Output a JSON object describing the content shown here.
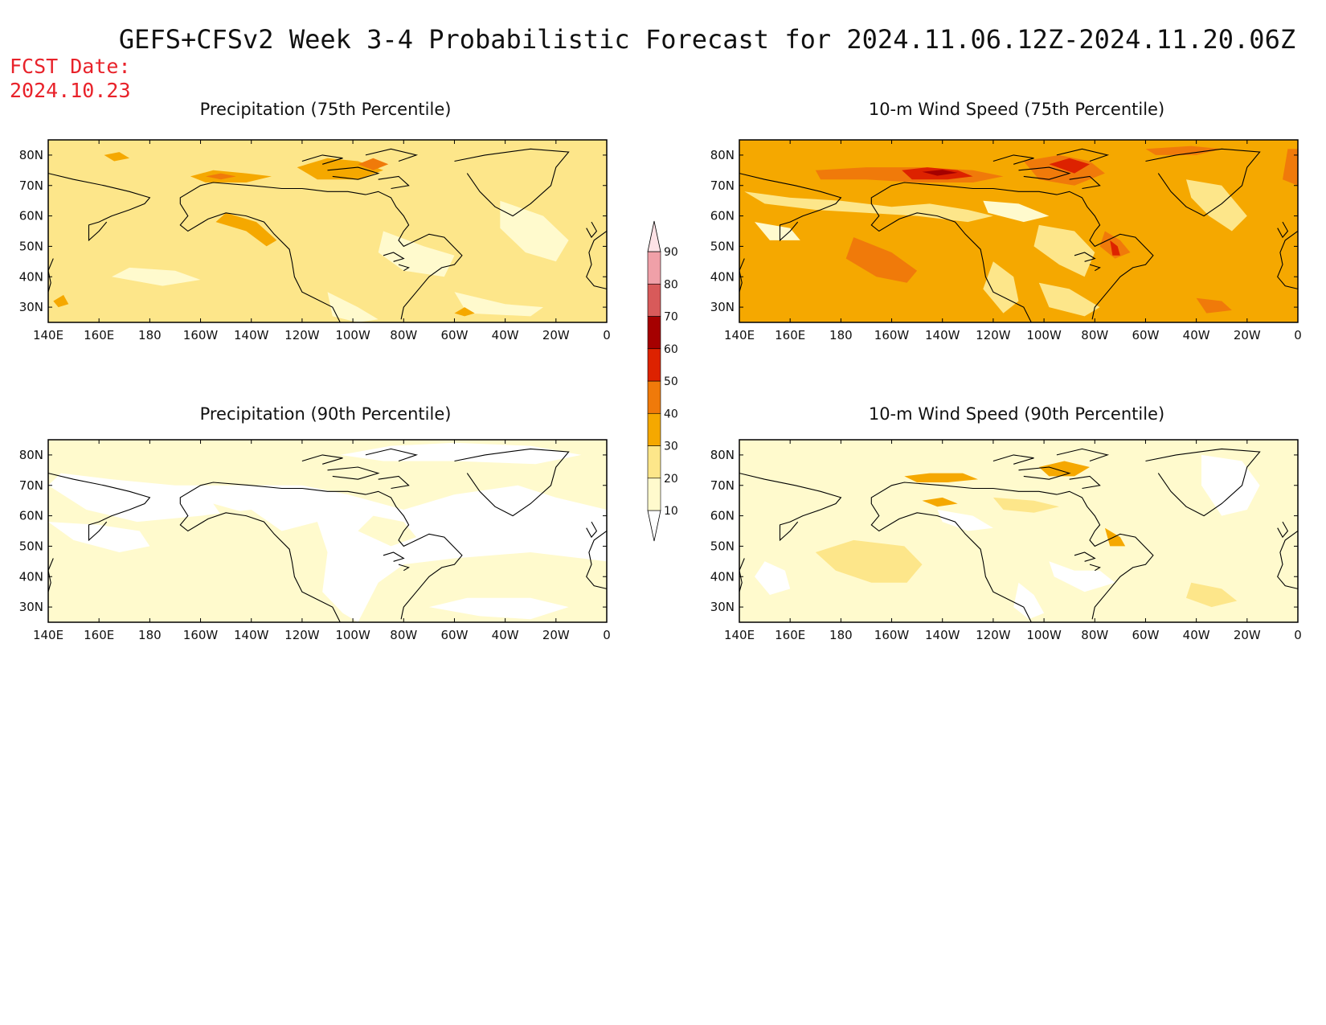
{
  "figure": {
    "title": "GEFS+CFSv2 Week 3-4 Probabilistic Forecast for 2024.11.06.12Z-2024.11.20.06Z",
    "fcst_label": "FCST Date:",
    "fcst_date": "2024.10.23"
  },
  "lon_ticks": [
    "140E",
    "160E",
    "180",
    "160W",
    "140W",
    "120W",
    "100W",
    "80W",
    "60W",
    "40W",
    "20W",
    "0"
  ],
  "lat_ticks": [
    "80N",
    "70N",
    "60N",
    "50N",
    "40N",
    "30N"
  ],
  "colorbar": {
    "levels": [
      "10",
      "20",
      "30",
      "40",
      "50",
      "60",
      "70",
      "80",
      "90"
    ],
    "colors": [
      "#fffacd",
      "#fde68a",
      "#f5a800",
      "#f07a0a",
      "#dd2200",
      "#a50000",
      "#d85a5a",
      "#f0a0a8",
      "#fde2e6"
    ]
  },
  "panels": [
    {
      "id": "precip-75",
      "title": "Precipitation (75th Percentile)",
      "base_color": "#fde68a"
    },
    {
      "id": "wind-75",
      "title": "10-m Wind Speed (75th Percentile)",
      "base_color": "#f5a800"
    },
    {
      "id": "precip-90",
      "title": "Precipitation (90th Percentile)",
      "base_color": "#fffacd"
    },
    {
      "id": "wind-90",
      "title": "10-m Wind Speed (90th Percentile)",
      "base_color": "#fffacd"
    }
  ]
}
